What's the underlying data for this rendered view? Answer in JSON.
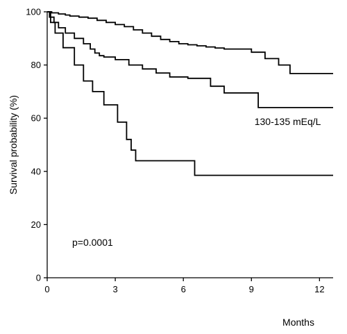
{
  "chart_data": {
    "type": "line",
    "subtype": "kaplan-meier step curve",
    "title": "",
    "xlabel": "Months",
    "ylabel": "Survival probability (%)",
    "xlim": [
      0,
      12.6
    ],
    "ylim": [
      0,
      100
    ],
    "x_ticks": [
      0,
      3,
      6,
      9,
      12
    ],
    "y_ticks": [
      0,
      20,
      40,
      60,
      80,
      100
    ],
    "grid": false,
    "legend": "none",
    "annotations": [
      {
        "text": "130-135 mEq/L",
        "x": 10.6,
        "y": 57.5
      },
      {
        "text": "p=0.0001",
        "x": 2.0,
        "y": 12.0
      }
    ],
    "series": [
      {
        "x": [
          0,
          0.2,
          0.5,
          0.8,
          1.0,
          1.4,
          1.8,
          2.2,
          2.6,
          3.0,
          3.4,
          3.8,
          4.2,
          4.6,
          5.0,
          5.4,
          5.8,
          6.2,
          6.6,
          7.0,
          7.4,
          7.8,
          8.2,
          9.0,
          9.6,
          10.2,
          10.7,
          12.6
        ],
        "y": [
          100,
          99.6,
          99.2,
          98.8,
          98.4,
          98.0,
          97.6,
          96.8,
          96.0,
          95.2,
          94.4,
          93.2,
          92.0,
          90.8,
          89.6,
          88.8,
          88.0,
          87.6,
          87.2,
          86.8,
          86.4,
          86.0,
          86.0,
          84.8,
          82.4,
          80.0,
          76.8,
          76.8
        ]
      },
      {
        "x": [
          0,
          0.1,
          0.3,
          0.5,
          0.8,
          1.2,
          1.6,
          1.9,
          2.1,
          2.3,
          2.5,
          3.0,
          3.6,
          4.2,
          4.8,
          5.4,
          6.2,
          7.2,
          7.8,
          9.3,
          12.6
        ],
        "y": [
          100,
          98.0,
          96.0,
          94.0,
          92.0,
          90.0,
          88.0,
          86.0,
          84.5,
          83.5,
          83.0,
          82.0,
          80.0,
          78.5,
          77.0,
          75.5,
          75.0,
          72.0,
          69.5,
          64.0,
          64.0
        ]
      },
      {
        "x": [
          0,
          0.15,
          0.35,
          0.7,
          1.2,
          1.6,
          2.0,
          2.5,
          3.1,
          3.5,
          3.7,
          3.9,
          6.5,
          12.6
        ],
        "y": [
          100,
          96.0,
          92.0,
          86.5,
          80.0,
          74.0,
          70.0,
          65.0,
          58.5,
          52.0,
          48.0,
          44.0,
          38.5,
          38.5
        ]
      }
    ]
  }
}
